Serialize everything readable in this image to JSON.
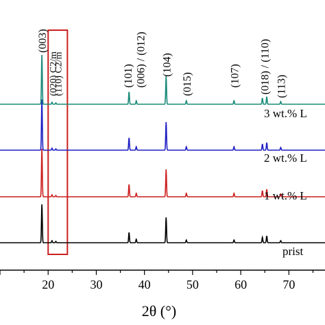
{
  "chart_data": {
    "type": "line",
    "xlabel": "2θ (°)",
    "ylabel": "",
    "xlim": [
      10,
      77.5
    ],
    "x_ticks": [
      20,
      30,
      40,
      50,
      60,
      70
    ],
    "grid": false,
    "series": [
      {
        "name": "prist",
        "color": "#000000",
        "peaks": [
          {
            "x": 18.7,
            "h": 56
          },
          {
            "x": 20.8,
            "h": 3
          },
          {
            "x": 21.6,
            "h": 2
          },
          {
            "x": 36.8,
            "h": 15
          },
          {
            "x": 38.3,
            "h": 5
          },
          {
            "x": 44.5,
            "h": 37
          },
          {
            "x": 48.7,
            "h": 4
          },
          {
            "x": 58.6,
            "h": 4
          },
          {
            "x": 64.5,
            "h": 8
          },
          {
            "x": 65.4,
            "h": 10
          },
          {
            "x": 68.3,
            "h": 3
          }
        ]
      },
      {
        "name": "1 wt.% L",
        "color": "#cc1f1f",
        "peaks": [
          {
            "x": 18.7,
            "h": 70
          },
          {
            "x": 20.8,
            "h": 3
          },
          {
            "x": 21.6,
            "h": 2
          },
          {
            "x": 36.8,
            "h": 18
          },
          {
            "x": 38.3,
            "h": 5
          },
          {
            "x": 44.5,
            "h": 40
          },
          {
            "x": 48.7,
            "h": 5
          },
          {
            "x": 58.6,
            "h": 5
          },
          {
            "x": 64.5,
            "h": 9
          },
          {
            "x": 65.4,
            "h": 11
          },
          {
            "x": 68.3,
            "h": 4
          }
        ]
      },
      {
        "name": "2 wt.% L",
        "color": "#1f1fc4",
        "peaks": [
          {
            "x": 18.7,
            "h": 74
          },
          {
            "x": 20.8,
            "h": 3
          },
          {
            "x": 21.6,
            "h": 2
          },
          {
            "x": 36.8,
            "h": 18
          },
          {
            "x": 38.3,
            "h": 5
          },
          {
            "x": 44.5,
            "h": 41
          },
          {
            "x": 48.7,
            "h": 5
          },
          {
            "x": 58.6,
            "h": 5
          },
          {
            "x": 64.5,
            "h": 9
          },
          {
            "x": 65.4,
            "h": 11
          },
          {
            "x": 68.3,
            "h": 4
          }
        ]
      },
      {
        "name": "3 wt.% L",
        "color": "#1a8a78",
        "peaks": [
          {
            "x": 18.7,
            "h": 72
          },
          {
            "x": 20.8,
            "h": 3
          },
          {
            "x": 21.6,
            "h": 2
          },
          {
            "x": 36.8,
            "h": 18
          },
          {
            "x": 38.3,
            "h": 5
          },
          {
            "x": 44.5,
            "h": 41
          },
          {
            "x": 48.7,
            "h": 5
          },
          {
            "x": 58.6,
            "h": 5
          },
          {
            "x": 64.5,
            "h": 9
          },
          {
            "x": 65.4,
            "h": 11
          },
          {
            "x": 68.3,
            "h": 4
          }
        ]
      }
    ],
    "annotations": [
      {
        "text": "(003)",
        "x": 18.7,
        "color": "#000000"
      },
      {
        "text": "(101)",
        "x": 36.8,
        "color": "#000000"
      },
      {
        "text": "(006) / (012)",
        "x": 38.3,
        "color": "#000000"
      },
      {
        "text": "(104)",
        "x": 44.5,
        "color": "#000000"
      },
      {
        "text": "(015)",
        "x": 48.7,
        "color": "#000000"
      },
      {
        "text": "(107)",
        "x": 58.6,
        "color": "#000000"
      },
      {
        "text": "(018) / (110)",
        "x": 64.9,
        "color": "#000000"
      },
      {
        "text": "(113)",
        "x": 68.3,
        "color": "#000000"
      },
      {
        "text": "(020) C2/m",
        "x": 20.8,
        "color": "#cc1f1f"
      },
      {
        "text": "(110) C2/m",
        "x": 21.9,
        "color": "#cc1f1f"
      }
    ],
    "highlight_box": {
      "x_range": [
        20.0,
        24.0
      ],
      "color": "#cc1f1f"
    }
  }
}
